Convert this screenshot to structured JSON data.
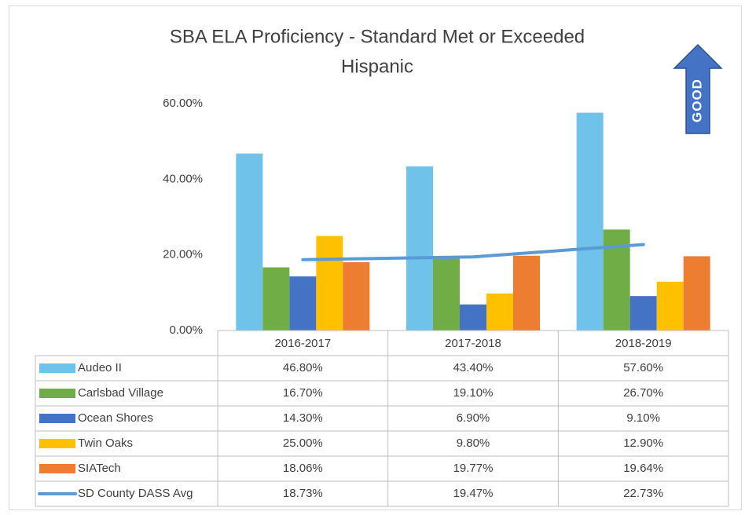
{
  "chart_data": {
    "type": "bar",
    "title": "SBA ELA Proficiency - Standard Met or Exceeded",
    "subtitle": "Hispanic",
    "annotation": "GOOD",
    "categories": [
      "2016-2017",
      "2017-2018",
      "2018-2019"
    ],
    "ylim": [
      0,
      60
    ],
    "yticks": [
      {
        "value": 0,
        "label": "0.00%"
      },
      {
        "value": 20,
        "label": "20.00%"
      },
      {
        "value": 40,
        "label": "40.00%"
      },
      {
        "value": 60,
        "label": "60.00%"
      }
    ],
    "grid": false,
    "series": [
      {
        "name": "Audeo II",
        "type": "bar",
        "color": "#6fc3ea",
        "values": [
          46.8,
          43.4,
          57.6
        ],
        "value_labels": [
          "46.80%",
          "43.40%",
          "57.60%"
        ]
      },
      {
        "name": "Carlsbad Village",
        "type": "bar",
        "color": "#70ad47",
        "values": [
          16.7,
          19.1,
          26.7
        ],
        "value_labels": [
          "16.70%",
          "19.10%",
          "26.70%"
        ]
      },
      {
        "name": "Ocean Shores",
        "type": "bar",
        "color": "#4472c4",
        "values": [
          14.3,
          6.9,
          9.1
        ],
        "value_labels": [
          "14.30%",
          "6.90%",
          "9.10%"
        ]
      },
      {
        "name": "Twin Oaks",
        "type": "bar",
        "color": "#ffc000",
        "values": [
          25.0,
          9.8,
          12.9
        ],
        "value_labels": [
          "25.00%",
          "9.80%",
          "12.90%"
        ]
      },
      {
        "name": "SIATech",
        "type": "bar",
        "color": "#ed7d31",
        "values": [
          18.06,
          19.77,
          19.64
        ],
        "value_labels": [
          "18.06%",
          "19.77%",
          "19.64%"
        ]
      },
      {
        "name": "SD County DASS Avg",
        "type": "line",
        "color": "#5b9bd5",
        "values": [
          18.73,
          19.47,
          22.73
        ],
        "value_labels": [
          "18.73%",
          "19.47%",
          "22.73%"
        ]
      }
    ]
  }
}
